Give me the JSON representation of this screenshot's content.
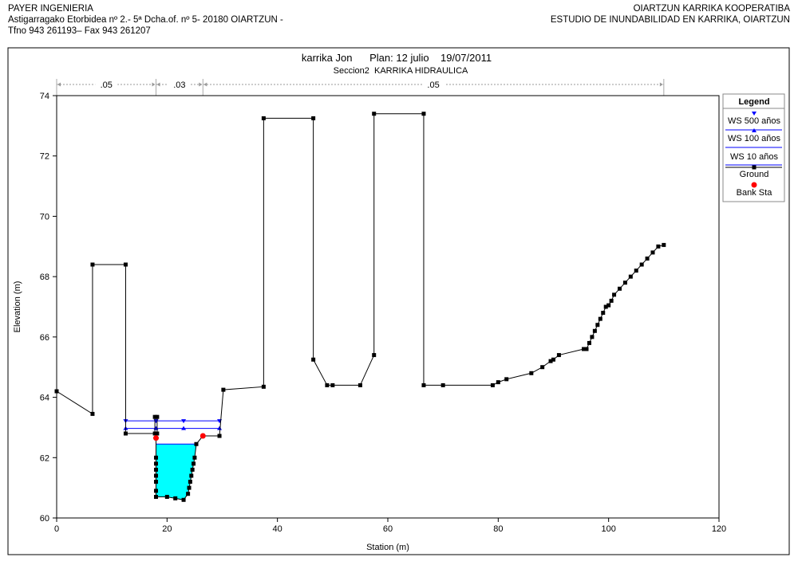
{
  "header": {
    "left": [
      "PAYER INGENIERIA",
      "Astigarragako Etorbidea nº 2.- 5ª Dcha.of. nº 5- 20180 OIARTZUN -",
      "Tfno 943 261193– Fax 943 261207"
    ],
    "right": [
      "OIARTZUN KARRIKA KOOPERATIBA",
      "ESTUDIO DE INUNDABILIDAD EN KARRIKA, OIARTZUN"
    ]
  },
  "chart_data": {
    "type": "line",
    "title": "karrika Jon      Plan: 12 julio    19/07/2011",
    "subtitle": "Seccion2  KARRIKA HIDRAULICA",
    "xlabel": "Station (m)",
    "ylabel": "Elevation (m)",
    "xlim": [
      0,
      120
    ],
    "ylim": [
      60,
      74
    ],
    "xticks": [
      "0",
      "20",
      "40",
      "60",
      "80",
      "100",
      "120"
    ],
    "yticks": [
      "60",
      "62",
      "64",
      "66",
      "68",
      "70",
      "72",
      "74"
    ],
    "grid": false,
    "legend_position": "right",
    "manning_n": [
      {
        "label": ".05",
        "from": 0,
        "to": 18
      },
      {
        "label": ".03",
        "from": 18,
        "to": 26.5
      },
      {
        "label": ".05",
        "from": 26.5,
        "to": 110
      }
    ],
    "ground": [
      [
        0,
        64.2
      ],
      [
        6.5,
        63.45
      ],
      [
        6.5,
        68.4
      ],
      [
        12.5,
        68.4
      ],
      [
        12.5,
        62.8
      ],
      [
        17.8,
        62.8
      ],
      [
        17.8,
        63.35
      ],
      [
        18.2,
        63.35
      ],
      [
        18.2,
        62.8
      ],
      [
        18.0,
        62.8
      ],
      [
        18.0,
        62.0
      ],
      [
        18.0,
        61.8
      ],
      [
        18.0,
        61.6
      ],
      [
        18.0,
        61.4
      ],
      [
        18.0,
        61.2
      ],
      [
        18.0,
        60.9
      ],
      [
        18.0,
        60.7
      ],
      [
        20.0,
        60.7
      ],
      [
        21.5,
        60.65
      ],
      [
        23.0,
        60.6
      ],
      [
        23.8,
        60.8
      ],
      [
        24.0,
        61.0
      ],
      [
        24.2,
        61.2
      ],
      [
        24.4,
        61.4
      ],
      [
        24.6,
        61.6
      ],
      [
        24.8,
        61.8
      ],
      [
        25.0,
        62.0
      ],
      [
        25.3,
        62.45
      ],
      [
        26.5,
        62.72
      ],
      [
        29.5,
        62.72
      ],
      [
        30.2,
        64.25
      ],
      [
        37.5,
        64.35
      ],
      [
        37.5,
        73.25
      ],
      [
        46.5,
        73.25
      ],
      [
        46.5,
        65.25
      ],
      [
        49.0,
        64.4
      ],
      [
        50.0,
        64.4
      ],
      [
        55.0,
        64.4
      ],
      [
        57.5,
        65.4
      ],
      [
        57.5,
        73.4
      ],
      [
        66.5,
        73.4
      ],
      [
        66.5,
        64.4
      ],
      [
        70.0,
        64.4
      ],
      [
        79.0,
        64.4
      ],
      [
        80.0,
        64.5
      ],
      [
        81.5,
        64.6
      ],
      [
        86.0,
        64.8
      ],
      [
        88.0,
        65.0
      ],
      [
        89.5,
        65.2
      ],
      [
        90.0,
        65.25
      ],
      [
        91.0,
        65.4
      ],
      [
        95.5,
        65.6
      ],
      [
        96.0,
        65.6
      ],
      [
        96.5,
        65.8
      ],
      [
        97.0,
        66.0
      ],
      [
        97.5,
        66.2
      ],
      [
        98.0,
        66.4
      ],
      [
        98.5,
        66.6
      ],
      [
        99.0,
        66.8
      ],
      [
        99.5,
        67.0
      ],
      [
        100.0,
        67.05
      ],
      [
        100.5,
        67.2
      ],
      [
        101.0,
        67.4
      ],
      [
        102.0,
        67.6
      ],
      [
        103.0,
        67.8
      ],
      [
        104.0,
        68.0
      ],
      [
        105.0,
        68.2
      ],
      [
        106.0,
        68.4
      ],
      [
        107.0,
        68.6
      ],
      [
        108.0,
        68.8
      ],
      [
        109.0,
        69.0
      ],
      [
        110.0,
        69.05
      ]
    ],
    "bank_stations": [
      [
        18.0,
        62.65
      ],
      [
        26.5,
        62.72
      ]
    ],
    "water_surfaces": [
      {
        "name": "WS 500 años",
        "elevation": 63.22,
        "from": 12.5,
        "to": 29.5,
        "marker": "triangle-down"
      },
      {
        "name": "WS 100 años",
        "elevation": 62.97,
        "from": 12.5,
        "to": 29.5,
        "marker": "triangle-up"
      },
      {
        "name": "WS 10 años",
        "elevation": 62.45,
        "from": 18.0,
        "to": 25.3,
        "marker": "none",
        "filled": true
      }
    ],
    "legend": {
      "title": "Legend",
      "entries": [
        "WS 500 años",
        "WS 100 años",
        "WS 10 años",
        "Ground",
        "Bank Sta"
      ]
    },
    "colors": {
      "water_line": "#0000ff",
      "water_fill": "#00ffff",
      "ground": "#000000",
      "bank": "#ff0000"
    }
  }
}
